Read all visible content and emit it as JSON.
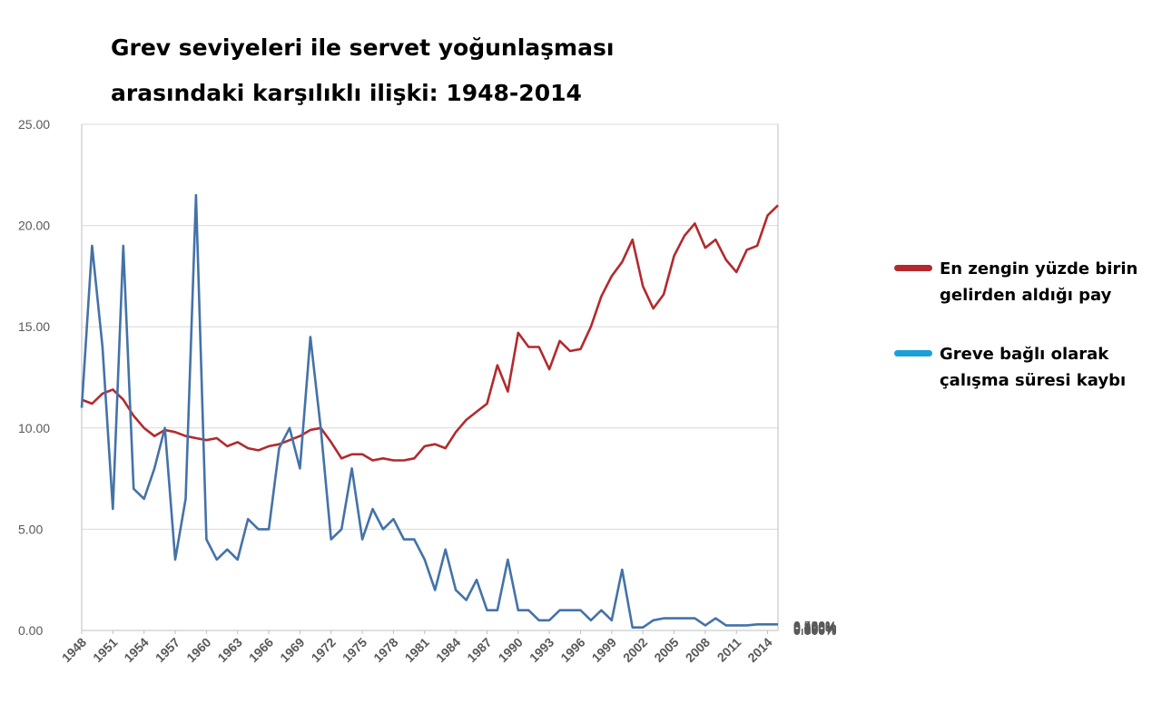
{
  "chart_data": {
    "type": "line",
    "title_lines": [
      "Grev seviyeleri ile servet yoğunlaşması",
      "arasındaki karşılıklı ilişki: 1948-2014"
    ],
    "left_axis": {
      "ylim": [
        0,
        25
      ],
      "ticks": [
        "0.00",
        "5.00",
        "10.00",
        "15.00",
        "20.00",
        "25.00"
      ]
    },
    "right_axis": {
      "ylim": [
        0,
        0.5
      ],
      "ticks": [
        "0.000%",
        "0.050%",
        "0.100%",
        "0.150%",
        "0.200%",
        "0.250%",
        "0.300%",
        "0.350%",
        "0.400%",
        "0.450%",
        "0.500%"
      ]
    },
    "x_ticks": [
      "1948",
      "1951",
      "1954",
      "1957",
      "1960",
      "1963",
      "1966",
      "1969",
      "1972",
      "1975",
      "1978",
      "1981",
      "1984",
      "1987",
      "1990",
      "1993",
      "1996",
      "1999",
      "2002",
      "2005",
      "2008",
      "2011",
      "2014"
    ],
    "grid": "horizontal",
    "legend_position": "right",
    "series": [
      {
        "name": "En zengin yüzde birin gelirden aldığı pay",
        "axis": "left",
        "color": "#b22a2e",
        "x": [
          1948,
          1949,
          1950,
          1951,
          1952,
          1953,
          1954,
          1955,
          1956,
          1957,
          1958,
          1959,
          1960,
          1961,
          1962,
          1963,
          1964,
          1965,
          1966,
          1967,
          1968,
          1969,
          1970,
          1971,
          1972,
          1973,
          1974,
          1975,
          1976,
          1977,
          1978,
          1979,
          1980,
          1981,
          1982,
          1983,
          1984,
          1985,
          1986,
          1987,
          1988,
          1989,
          1990,
          1991,
          1992,
          1993,
          1994,
          1995,
          1996,
          1997,
          1998,
          1999,
          2000,
          2001,
          2002,
          2003,
          2004,
          2005,
          2006,
          2007,
          2008,
          2009,
          2010,
          2011,
          2012,
          2013,
          2014,
          2015
        ],
        "values": [
          11.4,
          11.2,
          11.7,
          11.9,
          11.4,
          10.6,
          10.0,
          9.6,
          9.9,
          9.8,
          9.6,
          9.5,
          9.4,
          9.5,
          9.1,
          9.3,
          9.0,
          8.9,
          9.1,
          9.2,
          9.4,
          9.6,
          9.9,
          10.0,
          9.3,
          8.5,
          8.7,
          8.7,
          8.4,
          8.5,
          8.4,
          8.4,
          8.5,
          9.1,
          9.2,
          9.0,
          9.8,
          10.4,
          10.8,
          11.2,
          13.1,
          11.8,
          14.7,
          14.0,
          14.0,
          12.9,
          14.3,
          13.8,
          13.9,
          15.0,
          16.5,
          17.5,
          18.2,
          19.3,
          17.0,
          15.9,
          16.6,
          18.5,
          19.5,
          20.1,
          18.9,
          19.3,
          18.3,
          17.7,
          18.8,
          19.0,
          20.5,
          21.0
        ]
      },
      {
        "name": "Greve bağlı olarak çalışma süresi kaybı",
        "axis": "right",
        "color": "#4472a8",
        "legend_color": "#1c9fd9",
        "x": [
          1948,
          1949,
          1950,
          1951,
          1952,
          1953,
          1954,
          1955,
          1956,
          1957,
          1958,
          1959,
          1960,
          1961,
          1962,
          1963,
          1964,
          1965,
          1966,
          1967,
          1968,
          1969,
          1970,
          1971,
          1972,
          1973,
          1974,
          1975,
          1976,
          1977,
          1978,
          1979,
          1980,
          1981,
          1982,
          1983,
          1984,
          1985,
          1986,
          1987,
          1988,
          1989,
          1990,
          1991,
          1992,
          1993,
          1994,
          1995,
          1996,
          1997,
          1998,
          1999,
          2000,
          2001,
          2002,
          2003,
          2004,
          2005,
          2006,
          2007,
          2008,
          2009,
          2010,
          2011,
          2012,
          2013,
          2014,
          2015
        ],
        "values": [
          0.22,
          0.38,
          0.28,
          0.12,
          0.38,
          0.14,
          0.13,
          0.16,
          0.2,
          0.07,
          0.13,
          0.43,
          0.09,
          0.07,
          0.08,
          0.07,
          0.11,
          0.1,
          0.1,
          0.18,
          0.2,
          0.16,
          0.29,
          0.2,
          0.09,
          0.1,
          0.16,
          0.09,
          0.12,
          0.1,
          0.11,
          0.09,
          0.09,
          0.07,
          0.04,
          0.08,
          0.04,
          0.03,
          0.05,
          0.02,
          0.02,
          0.07,
          0.02,
          0.02,
          0.01,
          0.01,
          0.02,
          0.02,
          0.02,
          0.01,
          0.02,
          0.01,
          0.06,
          0.003,
          0.003,
          0.01,
          0.012,
          0.012,
          0.012,
          0.012,
          0.005,
          0.012,
          0.005,
          0.005,
          0.005,
          0.006,
          0.006,
          0.006
        ]
      }
    ]
  }
}
